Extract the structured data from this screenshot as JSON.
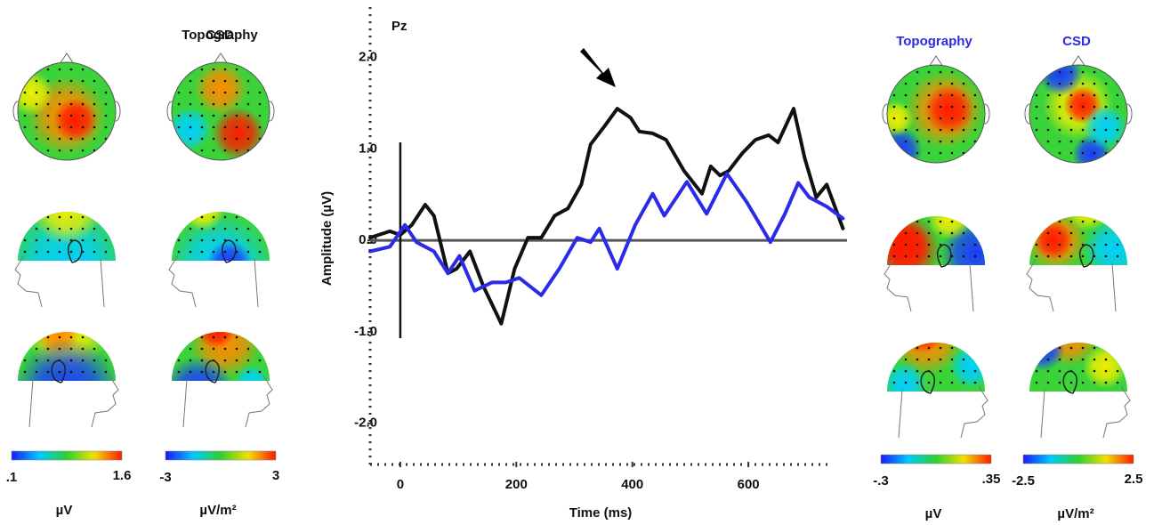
{
  "chart_data": {
    "type": "line",
    "title": "Pz",
    "xlabel": "Time (ms)",
    "ylabel": "Amplitude (µV)",
    "xlim": [
      -52,
      770
    ],
    "xticks": [
      0,
      200,
      400,
      600
    ],
    "ylim": [
      -2.45,
      2.55
    ],
    "yticks": [
      {
        "value": 2,
        "label": "2.0"
      },
      {
        "value": 1,
        "label": "1.0"
      },
      {
        "value": 0,
        "label": "0.0"
      },
      {
        "value": -1,
        "label": "-1.0"
      },
      {
        "value": -2,
        "label": "-2.0"
      }
    ],
    "series": [
      {
        "color": "#111111",
        "x": [
          -52,
          -18,
          0,
          20,
          43,
          58,
          82,
          97,
          120,
          143,
          174,
          197,
          220,
          243,
          266,
          289,
          312,
          328,
          351,
          374,
          397,
          412,
          435,
          458,
          489,
          520,
          535,
          551,
          566,
          589,
          612,
          635,
          651,
          678,
          697,
          717,
          735,
          763
        ],
        "values": [
          0.03,
          0.1,
          0.06,
          0.17,
          0.39,
          0.27,
          -0.36,
          -0.31,
          -0.12,
          -0.5,
          -0.91,
          -0.31,
          0.03,
          0.03,
          0.27,
          0.35,
          0.61,
          1.05,
          1.24,
          1.44,
          1.34,
          1.19,
          1.17,
          1.1,
          0.76,
          0.51,
          0.81,
          0.71,
          0.76,
          0.95,
          1.1,
          1.15,
          1.07,
          1.44,
          0.9,
          0.47,
          0.61,
          0.13
        ]
      },
      {
        "color": "#2a2ae8",
        "x": [
          -52,
          -18,
          8,
          28,
          58,
          82,
          102,
          128,
          158,
          182,
          205,
          243,
          274,
          305,
          328,
          343,
          374,
          405,
          435,
          455,
          494,
          528,
          563,
          597,
          638,
          663,
          686,
          705,
          735,
          763
        ],
        "values": [
          -0.12,
          -0.07,
          0.17,
          -0.02,
          -0.12,
          -0.36,
          -0.17,
          -0.55,
          -0.46,
          -0.46,
          -0.41,
          -0.6,
          -0.31,
          0.03,
          -0.02,
          0.13,
          -0.31,
          0.17,
          0.51,
          0.27,
          0.64,
          0.29,
          0.73,
          0.42,
          -0.02,
          0.29,
          0.63,
          0.47,
          0.37,
          0.24
        ]
      }
    ]
  },
  "panels": [
    {
      "title": "Topography",
      "color": "#111111",
      "scale": {
        "min": ".1",
        "max": "1.6",
        "unit": "µV"
      }
    },
    {
      "title": "CSD",
      "color": "#111111",
      "scale": {
        "min": "-3",
        "max": "3",
        "unit": "µV/m²"
      }
    },
    {
      "title": "Topography",
      "color": "#2a2ae8",
      "scale": {
        "min": "-.3",
        "max": ".35",
        "unit": "µV"
      }
    },
    {
      "title": "CSD",
      "color": "#2a2ae8",
      "scale": {
        "min": "-2.5",
        "max": "2.5",
        "unit": "µV/m²"
      }
    }
  ]
}
